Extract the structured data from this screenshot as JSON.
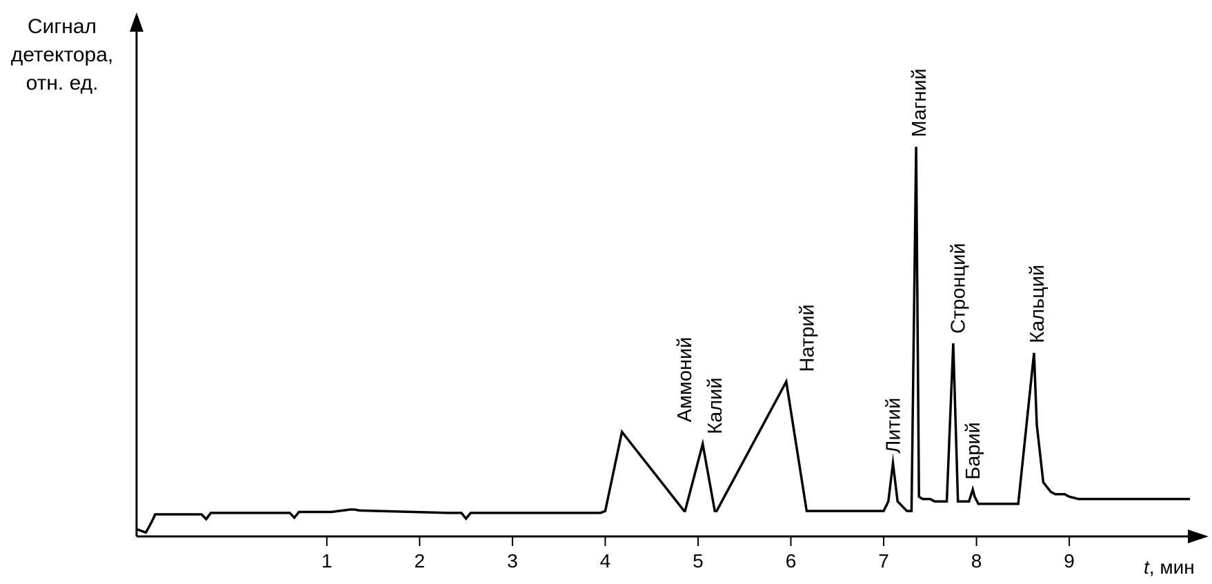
{
  "chart_data": {
    "type": "line",
    "ylabel_lines": [
      "Сигнал",
      "детектора,",
      "отн. ед."
    ],
    "xlabel_var": "t",
    "xlabel_unit": ", мин",
    "x_ticks": [
      1,
      2,
      3,
      4,
      5,
      6,
      7,
      8,
      9
    ],
    "xlim": [
      -1.05,
      10.3
    ],
    "ylim": [
      0,
      100
    ],
    "grid": false,
    "series": [
      {
        "x": [
          -1.05,
          -0.95,
          -0.88,
          -0.85,
          -0.7,
          -0.5,
          -0.35,
          -0.3,
          -0.25,
          0.3,
          0.6,
          0.65,
          0.7,
          1.05,
          1.25,
          1.3,
          1.35,
          2.3,
          2.45,
          2.5,
          2.55,
          3.95,
          4.0,
          4.18,
          4.85,
          4.86,
          5.05,
          5.18,
          5.2,
          5.95,
          6.17,
          6.2,
          7.0,
          7.05,
          7.1,
          7.15,
          7.25,
          7.3,
          7.35,
          7.38,
          7.42,
          7.5,
          7.55,
          7.6,
          7.68,
          7.75,
          7.8,
          7.88,
          7.92,
          7.96,
          7.98,
          8.02,
          8.1,
          8.45,
          8.62,
          8.65,
          8.72,
          8.8,
          8.85,
          8.95,
          9.0,
          9.1,
          10.3
        ],
        "y": [
          -1.8,
          -2.5,
          0,
          1.3,
          1.3,
          1.3,
          1.3,
          0.3,
          1.6,
          1.6,
          1.6,
          0.6,
          1.8,
          1.8,
          2.3,
          2.3,
          2.1,
          1.6,
          1.6,
          0.4,
          1.6,
          1.6,
          2.0,
          18.5,
          2.0,
          2.0,
          16.0,
          2.0,
          2.0,
          29.0,
          2.0,
          2.0,
          2.0,
          4.0,
          12.0,
          4.0,
          2.0,
          2.0,
          78.0,
          5.0,
          4.5,
          4.5,
          4.0,
          4.0,
          4.0,
          37.0,
          4.0,
          4.0,
          4.0,
          6.5,
          5.0,
          3.5,
          3.5,
          3.5,
          35.0,
          20.0,
          8.0,
          6.0,
          5.5,
          5.5,
          5.0,
          4.5,
          4.5
        ]
      }
    ],
    "annotations": [
      {
        "text": "Аммоний",
        "x": 4.85,
        "y": 18.5
      },
      {
        "text": "Калий",
        "x": 5.18,
        "y": 16.0
      },
      {
        "text": "Натрий",
        "x": 6.17,
        "y": 29.0
      },
      {
        "text": "Литий",
        "x": 7.1,
        "y": 12.0
      },
      {
        "text": "Магний",
        "x": 7.38,
        "y": 78.0
      },
      {
        "text": "Стронций",
        "x": 7.8,
        "y": 37.0
      },
      {
        "text": "Барий",
        "x": 7.96,
        "y": 6.5
      },
      {
        "text": "Кальций",
        "x": 8.65,
        "y": 35.0
      }
    ]
  }
}
